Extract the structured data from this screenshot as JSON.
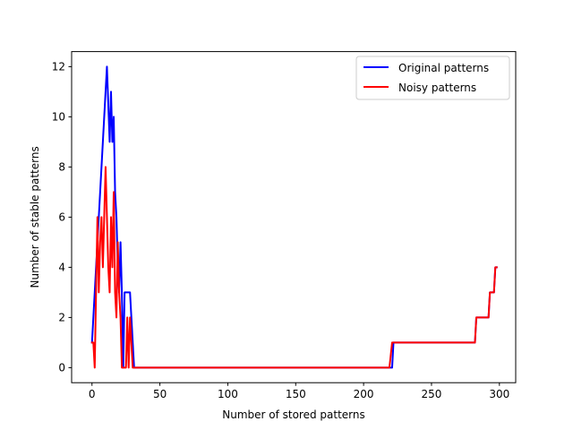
{
  "chart_data": {
    "type": "line",
    "title": "",
    "xlabel": "Number of stored patterns",
    "ylabel": "Number of stable patterns",
    "xlim": [
      -15,
      312
    ],
    "ylim": [
      -0.6,
      12.6
    ],
    "xticks": [
      0,
      50,
      100,
      150,
      200,
      250,
      300
    ],
    "yticks": [
      0,
      2,
      4,
      6,
      8,
      10,
      12
    ],
    "grid": false,
    "legend_position": "top-right",
    "series": [
      {
        "name": "Original patterns",
        "color": "#0000ff",
        "x": [
          0,
          2,
          4,
          6,
          8,
          10,
          11,
          12,
          13,
          14,
          15,
          16,
          17,
          18,
          19,
          20,
          21,
          22,
          23,
          24,
          25,
          26,
          27,
          28,
          29,
          30,
          31,
          33,
          60,
          100,
          150,
          200,
          220,
          221,
          222,
          225,
          250,
          282,
          283,
          284,
          290,
          292,
          293,
          294,
          296,
          297,
          298
        ],
        "y": [
          1,
          3,
          5,
          7,
          9,
          11,
          12,
          10.5,
          9,
          11,
          9,
          10,
          7,
          6,
          4,
          3,
          5,
          3,
          0,
          3,
          3,
          3,
          3,
          3,
          2,
          1,
          0,
          0,
          0,
          0,
          0,
          0,
          0,
          0,
          1,
          1,
          1,
          1,
          2,
          2,
          2,
          2,
          3,
          3,
          3,
          4,
          4
        ]
      },
      {
        "name": "Noisy patterns",
        "color": "#ff0000",
        "x": [
          0,
          1,
          2,
          3,
          4,
          5,
          6,
          7,
          8,
          9,
          10,
          11,
          12,
          13,
          14,
          15,
          16,
          17,
          18,
          19,
          20,
          21,
          22,
          23,
          24,
          25,
          26,
          27,
          28,
          29,
          30,
          31,
          40,
          60,
          100,
          150,
          200,
          219,
          221,
          222,
          250,
          282,
          283,
          290,
          292,
          293,
          296,
          297,
          298
        ],
        "y": [
          1,
          1,
          0,
          3,
          6,
          3,
          5,
          6,
          4,
          6,
          8,
          6,
          4,
          3,
          6,
          4,
          7,
          3,
          2,
          5,
          3,
          2,
          0,
          0,
          0,
          0,
          2,
          0,
          2,
          1,
          0,
          0,
          0,
          0,
          0,
          0,
          0,
          0,
          1,
          1,
          1,
          1,
          2,
          2,
          2,
          3,
          3,
          4,
          4
        ]
      }
    ]
  }
}
